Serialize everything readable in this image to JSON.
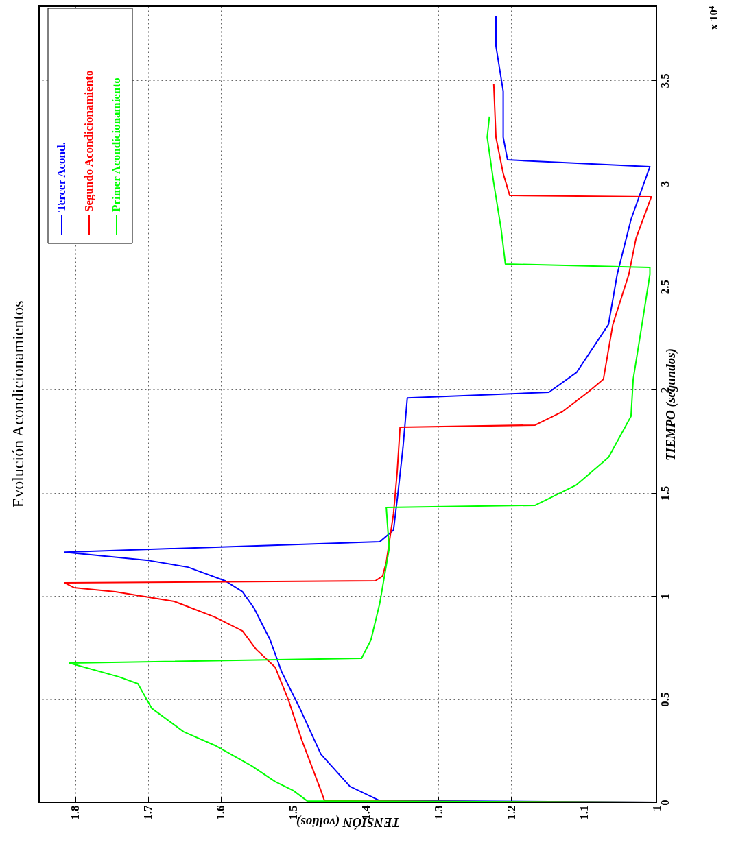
{
  "chart_data": {
    "type": "line",
    "title": "Evolución Acondicionamientos",
    "xlabel": "TENSIÓN (voltios)",
    "ylabel": "TIEMPO (segundos)",
    "xlim": [
      1.85,
      1
    ],
    "ylim": [
      0,
      3.86
    ],
    "xticks": [
      1.8,
      1.7,
      1.6,
      1.5,
      1.4,
      1.3,
      1.2,
      1.1,
      1
    ],
    "yticks": [
      0,
      0.5,
      1,
      1.5,
      2,
      2.5,
      3,
      3.5
    ],
    "grid": true,
    "legend": "top left",
    "annotations": [
      "x 10⁴"
    ],
    "series": [
      {
        "name": "Tercer Acond.",
        "color": "#0000ff",
        "x": [
          1.0,
          1.381,
          1.422,
          1.462,
          1.491,
          1.516,
          1.532,
          1.554,
          1.57,
          1.594,
          1.645,
          1.702,
          1.815,
          1.381,
          1.362,
          1.356,
          1.349,
          1.343,
          1.148,
          1.11,
          1.066,
          1.054,
          1.035,
          1.009,
          1.205,
          1.211,
          1.211,
          1.221,
          1.221
        ],
        "values": [
          0,
          0.008,
          0.077,
          0.233,
          0.456,
          0.632,
          0.788,
          0.941,
          1.021,
          1.074,
          1.14,
          1.174,
          1.213,
          1.263,
          1.32,
          1.496,
          1.719,
          1.961,
          1.988,
          2.084,
          2.317,
          2.56,
          2.826,
          3.082,
          3.115,
          3.225,
          3.448,
          3.667,
          3.813
        ]
      },
      {
        "name": "Segundo Acondicionamiento",
        "color": "#ff0000",
        "x": [
          1.0,
          1.457,
          1.462,
          1.488,
          1.507,
          1.525,
          1.551,
          1.57,
          1.608,
          1.664,
          1.745,
          1.802,
          1.815,
          1.387,
          1.377,
          1.372,
          1.362,
          1.357,
          1.353,
          1.167,
          1.129,
          1.092,
          1.073,
          1.06,
          1.038,
          1.028,
          1.007,
          1.202,
          1.211,
          1.221,
          1.224
        ],
        "values": [
          0,
          0.007,
          0.057,
          0.299,
          0.499,
          0.655,
          0.741,
          0.831,
          0.898,
          0.974,
          1.021,
          1.041,
          1.064,
          1.074,
          1.097,
          1.164,
          1.4,
          1.6,
          1.819,
          1.829,
          1.895,
          1.995,
          2.051,
          2.317,
          2.56,
          2.736,
          2.936,
          2.942,
          3.049,
          3.225,
          3.481
        ]
      },
      {
        "name": "Primer Acondicionamiento",
        "color": "#00ff00",
        "x": [
          1.0,
          1.481,
          1.5,
          1.525,
          1.557,
          1.608,
          1.651,
          1.695,
          1.714,
          1.74,
          1.808,
          1.406,
          1.393,
          1.381,
          1.368,
          1.372,
          1.167,
          1.11,
          1.066,
          1.035,
          1.032,
          1.019,
          1.009,
          1.009,
          1.208,
          1.214,
          1.224,
          1.233,
          1.23
        ],
        "values": [
          0,
          0.007,
          0.057,
          0.1,
          0.176,
          0.276,
          0.342,
          0.456,
          0.575,
          0.608,
          0.675,
          0.698,
          0.788,
          0.964,
          1.23,
          1.43,
          1.44,
          1.539,
          1.672,
          1.872,
          2.051,
          2.337,
          2.56,
          2.593,
          2.61,
          2.783,
          3.002,
          3.225,
          3.325
        ]
      }
    ]
  }
}
